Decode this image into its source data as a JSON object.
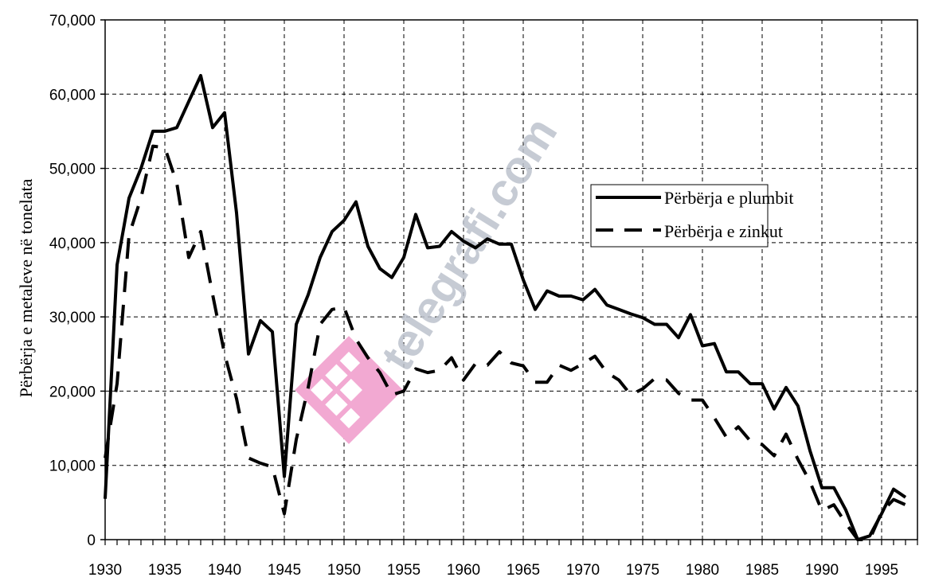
{
  "chart_data": {
    "type": "line",
    "title": "",
    "xlabel": "",
    "ylabel": "Përbërja e metaleve në tonelata",
    "xlim": [
      1930,
      1998
    ],
    "ylim": [
      0,
      70000
    ],
    "x_ticks": [
      1930,
      1935,
      1940,
      1945,
      1950,
      1955,
      1960,
      1965,
      1970,
      1975,
      1980,
      1985,
      1990,
      1995
    ],
    "x_tick_labels": [
      "1930",
      "1935",
      "1940",
      "1945",
      "1950",
      "1955",
      "1960",
      "1965",
      "1970",
      "1975",
      "1980",
      "1985",
      "1990",
      "1995"
    ],
    "y_ticks": [
      0,
      10000,
      20000,
      30000,
      40000,
      50000,
      60000,
      70000
    ],
    "y_tick_labels": [
      "0",
      "10,000",
      "20,000",
      "30,000",
      "40,000",
      "50,000",
      "60,000",
      "70,000"
    ],
    "grid": true,
    "legend_position": "center-right",
    "series": [
      {
        "name": "Përbërja e plumbit",
        "style": "solid",
        "color": "#000000",
        "points": [
          [
            1930,
            5500
          ],
          [
            1931,
            37000
          ],
          [
            1932,
            46000
          ],
          [
            1933,
            50000
          ],
          [
            1934,
            55000
          ],
          [
            1935,
            55000
          ],
          [
            1936,
            55500
          ],
          [
            1937,
            59000
          ],
          [
            1938,
            62500
          ],
          [
            1939,
            55500
          ],
          [
            1940,
            57500
          ],
          [
            1941,
            44000
          ],
          [
            1942,
            25000
          ],
          [
            1943,
            29500
          ],
          [
            1944,
            28000
          ],
          [
            1945,
            8500
          ],
          [
            1946,
            29000
          ],
          [
            1947,
            33000
          ],
          [
            1948,
            38000
          ],
          [
            1949,
            41500
          ],
          [
            1950,
            43000
          ],
          [
            1951,
            45500
          ],
          [
            1952,
            39500
          ],
          [
            1953,
            36500
          ],
          [
            1954,
            35300
          ],
          [
            1955,
            38000
          ],
          [
            1956,
            43800
          ],
          [
            1957,
            39300
          ],
          [
            1958,
            39500
          ],
          [
            1959,
            41500
          ],
          [
            1960,
            40200
          ],
          [
            1961,
            39300
          ],
          [
            1962,
            40500
          ],
          [
            1963,
            39800
          ],
          [
            1964,
            39800
          ],
          [
            1965,
            35000
          ],
          [
            1966,
            31000
          ],
          [
            1967,
            33500
          ],
          [
            1968,
            32800
          ],
          [
            1969,
            32800
          ],
          [
            1970,
            32300
          ],
          [
            1971,
            33700
          ],
          [
            1972,
            31600
          ],
          [
            1973,
            31000
          ],
          [
            1974,
            30400
          ],
          [
            1975,
            29900
          ],
          [
            1976,
            29000
          ],
          [
            1977,
            29000
          ],
          [
            1978,
            27200
          ],
          [
            1979,
            30300
          ],
          [
            1980,
            26100
          ],
          [
            1981,
            26400
          ],
          [
            1982,
            22600
          ],
          [
            1983,
            22600
          ],
          [
            1984,
            21000
          ],
          [
            1985,
            21000
          ],
          [
            1986,
            17600
          ],
          [
            1987,
            20500
          ],
          [
            1988,
            18000
          ],
          [
            1989,
            12000
          ],
          [
            1990,
            7000
          ],
          [
            1991,
            7000
          ],
          [
            1992,
            4000
          ],
          [
            1993,
            0
          ],
          [
            1994,
            500
          ],
          [
            1995,
            3500
          ],
          [
            1996,
            6800
          ],
          [
            1997,
            5700
          ]
        ]
      },
      {
        "name": "Përbërja e zinkut",
        "style": "dashed",
        "color": "#000000",
        "points": [
          [
            1930,
            11000
          ],
          [
            1931,
            21000
          ],
          [
            1932,
            41000
          ],
          [
            1933,
            46000
          ],
          [
            1934,
            53000
          ],
          [
            1935,
            52800
          ],
          [
            1936,
            48000
          ],
          [
            1937,
            38000
          ],
          [
            1938,
            41500
          ],
          [
            1939,
            33000
          ],
          [
            1940,
            25000
          ],
          [
            1941,
            19000
          ],
          [
            1942,
            11000
          ],
          [
            1943,
            10300
          ],
          [
            1944,
            9800
          ],
          [
            1945,
            3500
          ],
          [
            1946,
            13500
          ],
          [
            1947,
            20500
          ],
          [
            1948,
            29000
          ],
          [
            1949,
            31000
          ],
          [
            1950,
            31300
          ],
          [
            1951,
            27000
          ],
          [
            1952,
            24500
          ],
          [
            1953,
            22500
          ],
          [
            1954,
            19500
          ],
          [
            1955,
            20000
          ],
          [
            1956,
            23000
          ],
          [
            1957,
            22500
          ],
          [
            1958,
            22800
          ],
          [
            1959,
            24500
          ],
          [
            1960,
            21500
          ],
          [
            1961,
            23700
          ],
          [
            1962,
            23500
          ],
          [
            1963,
            25300
          ],
          [
            1964,
            23800
          ],
          [
            1965,
            23400
          ],
          [
            1966,
            21200
          ],
          [
            1967,
            21200
          ],
          [
            1968,
            23500
          ],
          [
            1969,
            22800
          ],
          [
            1970,
            23700
          ],
          [
            1971,
            24700
          ],
          [
            1972,
            22500
          ],
          [
            1973,
            21500
          ],
          [
            1974,
            19500
          ],
          [
            1975,
            20300
          ],
          [
            1976,
            21700
          ],
          [
            1977,
            21500
          ],
          [
            1978,
            19700
          ],
          [
            1979,
            18800
          ],
          [
            1980,
            18800
          ],
          [
            1981,
            16400
          ],
          [
            1982,
            13800
          ],
          [
            1983,
            15200
          ],
          [
            1984,
            13300
          ],
          [
            1985,
            12800
          ],
          [
            1986,
            11300
          ],
          [
            1987,
            14200
          ],
          [
            1988,
            10800
          ],
          [
            1989,
            7800
          ],
          [
            1990,
            3900
          ],
          [
            1991,
            4700
          ],
          [
            1992,
            2200
          ],
          [
            1993,
            0
          ],
          [
            1994,
            0
          ],
          [
            1995,
            3700
          ],
          [
            1996,
            5400
          ],
          [
            1997,
            4700
          ]
        ]
      }
    ]
  },
  "watermark": {
    "text": "telegrafi.com",
    "logo_color": "#f2a9d2",
    "text_color": "#bcc2cc"
  }
}
